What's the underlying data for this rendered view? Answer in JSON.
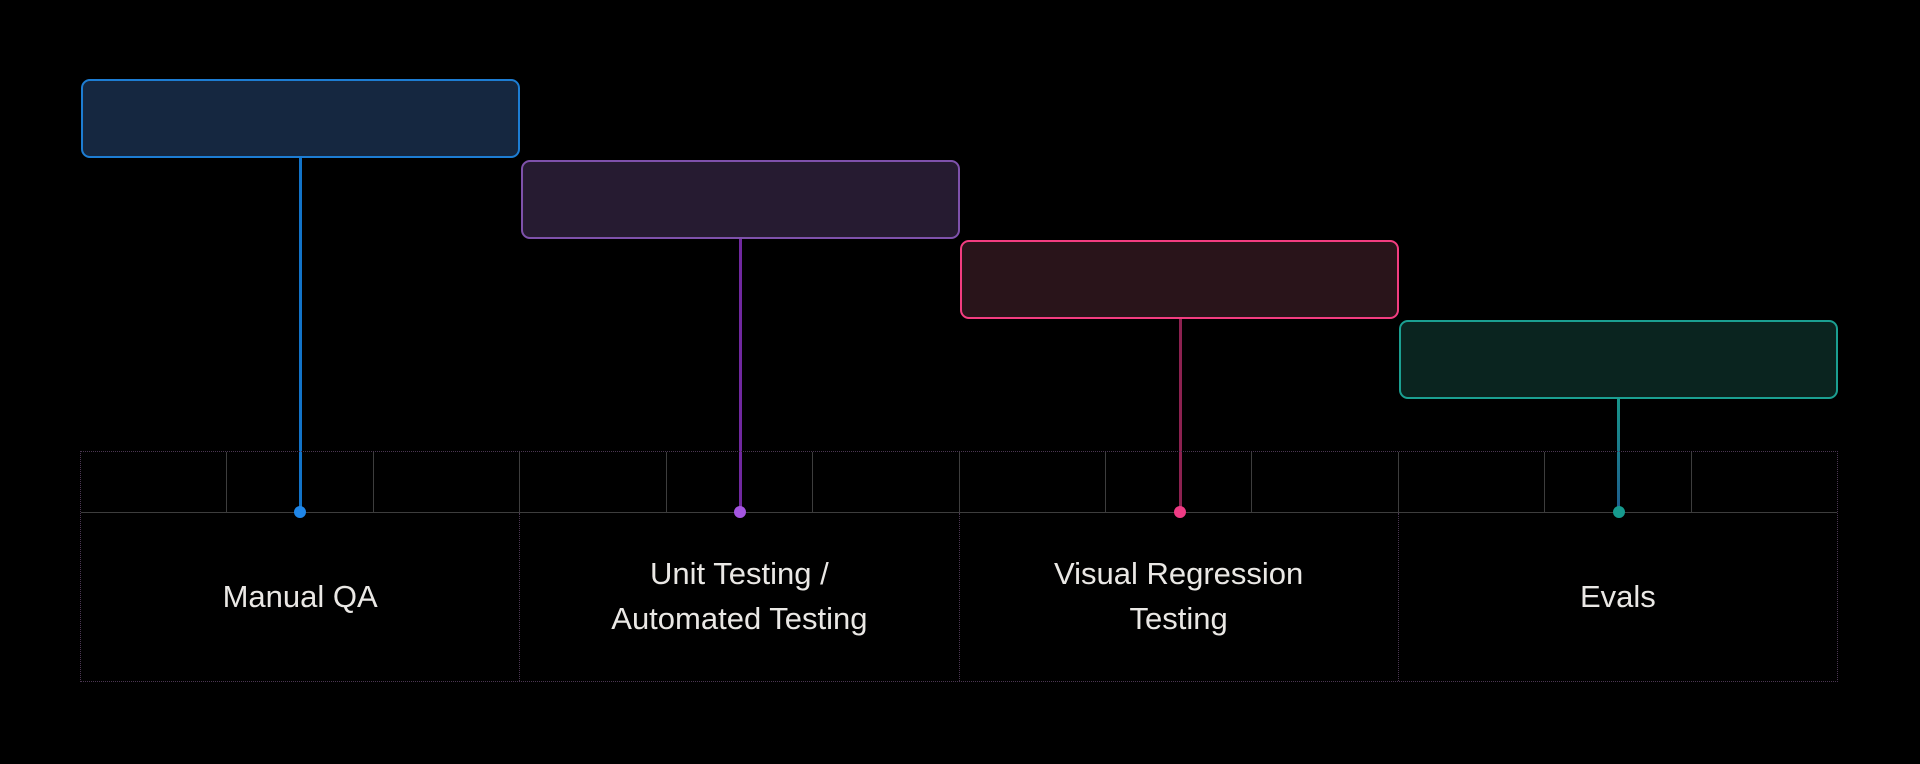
{
  "diagram": {
    "title": "QA / testing methods staircase timeline",
    "background_color": "#000000",
    "timeline": {
      "sections_count": 4,
      "tick_cells_per_section": 3,
      "outer_border_color": "#4b3752",
      "grid_line_color": "#3d3d3d",
      "label_text_color": "#eae8e5"
    }
  },
  "stages": [
    {
      "label": "Manual QA",
      "box_fill": "#152740",
      "box_border": "#1d7dd3",
      "line_color": "#1273c8",
      "dot_color": "#1f86e8"
    },
    {
      "label": "Unit Testing /\nAutomated Testing",
      "box_fill": "#261b31",
      "box_border": "#7e51ab",
      "line_color": "#70289f",
      "dot_color": "#a455e0"
    },
    {
      "label": "Visual Regression\nTesting",
      "box_fill": "#29141a",
      "box_border": "#f23d80",
      "line_color": "#8c2150",
      "dot_color": "#ee3b84"
    },
    {
      "label": "Evals",
      "box_fill": "#0a241f",
      "box_border": "#1b9f91",
      "line_color_top": "#17948a",
      "line_color_bottom": "#1e5c8e",
      "dot_color": "#169a8e"
    }
  ]
}
